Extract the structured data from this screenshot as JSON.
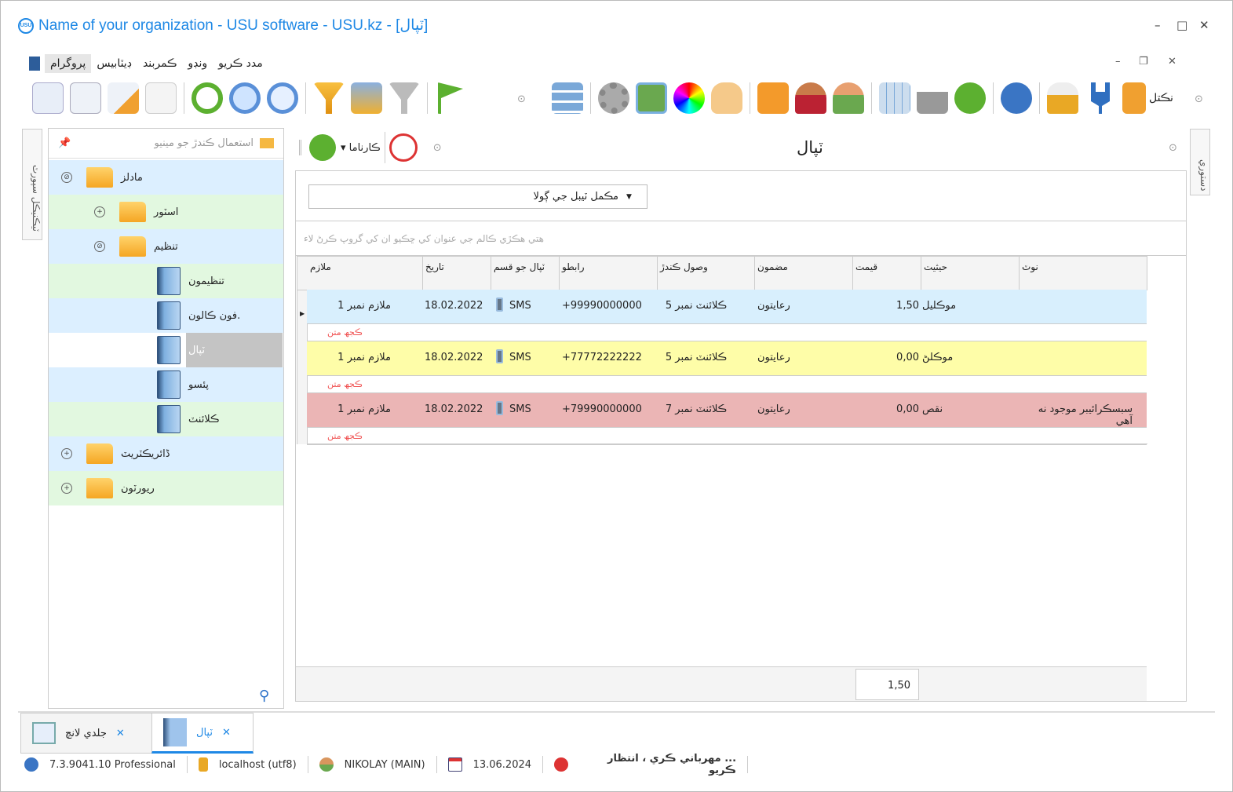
{
  "window": {
    "title": "Name of your organization - USU software - USU.kz - [ٽپال]",
    "logo": "USU",
    "controls": [
      "–",
      "□",
      "✕"
    ]
  },
  "menu": {
    "items": [
      "پروگرام",
      "ڊيٽابيس",
      "ڪمربند",
      "ونڊو",
      "مدد ڪريو"
    ],
    "active": 0
  },
  "toolbar": {
    "exit_label": "نڪتل",
    "icons": [
      "new-record-icon",
      "copy-icon",
      "edit-icon",
      "delete-icon",
      "refresh-icon",
      "search-icon",
      "search-table-icon",
      "filter-icon",
      "filter-edit-icon",
      "filter-clear-icon",
      "flag-icon",
      "grid-icon",
      "gear-icon",
      "map-icon",
      "color-wheel-icon",
      "hand-icon",
      "rss-icon",
      "user-key-icon",
      "users-icon",
      "table-icon",
      "print-icon",
      "go-icon",
      "info-icon",
      "lock-icon",
      "plug-icon",
      "exit-icon"
    ]
  },
  "left_panel": {
    "title": "استعمال ڪندڙ جو مينيو",
    "side_tab": "ٽيڪنيڪل سپورٽ",
    "tree": [
      {
        "label": "مادلز",
        "type": "folder",
        "level": 0,
        "expanded": true
      },
      {
        "label": "اسٽور",
        "type": "folder",
        "level": 1,
        "expanded": false
      },
      {
        "label": "تنظيم",
        "type": "folder",
        "level": 1,
        "expanded": true
      },
      {
        "label": "تنظيمون",
        "type": "book",
        "level": 2
      },
      {
        "label": "فون ڪالون.",
        "type": "book",
        "level": 2
      },
      {
        "label": "ٽپال",
        "type": "book",
        "level": 2,
        "selected": true
      },
      {
        "label": "پئسو",
        "type": "book",
        "level": 2
      },
      {
        "label": "ڪلائنٽ",
        "type": "book",
        "level": 2
      },
      {
        "label": "ڈائريڪٽريٽ",
        "type": "folder",
        "level": 0,
        "expanded": false
      },
      {
        "label": "ريورٽون",
        "type": "folder",
        "level": 0,
        "expanded": false
      }
    ]
  },
  "main": {
    "title": "ٽپال",
    "actions_label": "ڪارناما",
    "right_tab": "دستوري",
    "filter_value": "مڪمل ٽيبل جي ڳولا",
    "group_hint": "هتي هڪڙي ڪالم جي عنوان کي ڇڪيو ان کي گروپ ڪرڻ لاء",
    "columns": [
      "ملازم",
      "تاريخ",
      "ٽپال جو قسم",
      "رابطو",
      "وصول ڪندڙ",
      "مضمون",
      "قيمت",
      "حيثيت",
      "نوٽ"
    ],
    "rows": [
      {
        "employee": "ملازم نمبر 1",
        "date": "18.02.2022",
        "type": "SMS",
        "contact": "+99990000000",
        "recipient": "ڪلائنٽ نمبر 5",
        "subject": "رعايتون",
        "price": "1,50",
        "status": "موڪليل",
        "note": "",
        "text": "ڪجھ متن",
        "color": "#d8effd"
      },
      {
        "employee": "ملازم نمبر 1",
        "date": "18.02.2022",
        "type": "SMS",
        "contact": "+77772222222",
        "recipient": "ڪلائنٽ نمبر 5",
        "subject": "رعايتون",
        "price": "0,00",
        "status": "موڪلڻ",
        "note": "",
        "text": "ڪجھ متن",
        "color": "#fefda8"
      },
      {
        "employee": "ملازم نمبر 1",
        "date": "18.02.2022",
        "type": "SMS",
        "contact": "+79990000000",
        "recipient": "ڪلائنٽ نمبر 7",
        "subject": "رعايتون",
        "price": "0,00",
        "status": "نقص",
        "note": "سبسڪرائيبر موجود نه آهي",
        "text": "ڪجھ متن",
        "color": "#ebb5b5"
      }
    ],
    "total": "1,50"
  },
  "tabs": [
    {
      "label": "جلدي لانچ",
      "active": false
    },
    {
      "label": "ٽپال",
      "active": true
    }
  ],
  "status": {
    "version": "7.3.9041.10 Professional",
    "db": "localhost (utf8)",
    "user": "NIKOLAY (MAIN)",
    "date": "13.06.2024",
    "message": "... مهرباني ڪري ، انتظار ڪريو"
  }
}
